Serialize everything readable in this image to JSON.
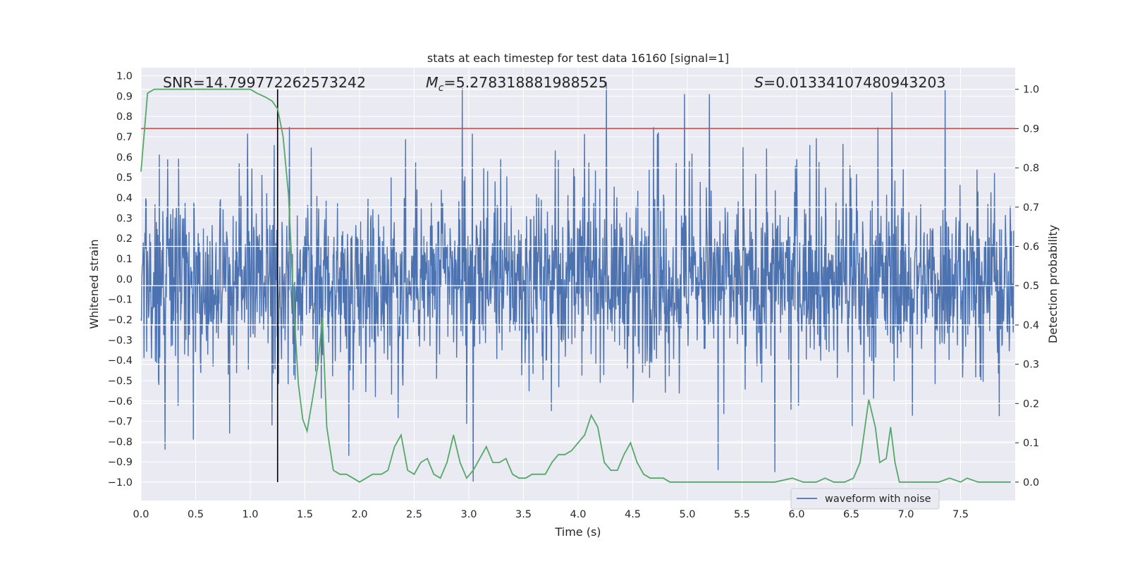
{
  "chart_data": {
    "type": "line",
    "title": "stats at each timestep for test data 16160 [signal=1]",
    "xlabel": "Time (s)",
    "ylabel_left": "Whitened strain",
    "ylabel_right": "Detection probability",
    "xlim": [
      0.0,
      8.0
    ],
    "ylim_left": [
      -1.09,
      1.04
    ],
    "ylim_right": [
      -0.047,
      1.055
    ],
    "x_ticks": [
      "0.0",
      "0.5",
      "1.0",
      "1.5",
      "2.0",
      "2.5",
      "3.0",
      "3.5",
      "4.0",
      "4.5",
      "5.0",
      "5.5",
      "6.0",
      "6.5",
      "7.0",
      "7.5"
    ],
    "y_ticks_left": [
      "1.0",
      "0.9",
      "0.8",
      "0.7",
      "0.6",
      "0.5",
      "0.4",
      "0.3",
      "0.2",
      "0.1",
      "0.0",
      "−0.1",
      "−0.2",
      "−0.3",
      "−0.4",
      "−0.5",
      "−0.6",
      "−0.7",
      "−0.8",
      "−0.9",
      "−1.0"
    ],
    "y_ticks_right": [
      "1.0",
      "0.9",
      "0.8",
      "0.7",
      "0.6",
      "0.5",
      "0.4",
      "0.3",
      "0.2",
      "0.1",
      "0.0"
    ],
    "grid": true,
    "legend_position": "lower-right",
    "annotations": {
      "snr": "SNR=14.799772262573242",
      "mc_symbol": "M",
      "mc_sub": "c",
      "mc_value": "=5.278318881988525",
      "s_symbol": "S",
      "s_value": "=0.01334107480943203"
    },
    "threshold": 0.9,
    "merger_time": 1.25,
    "colors": {
      "background": "#eaeaf2",
      "grid": "#ffffff",
      "waveform": "#4c72b0",
      "probability": "#55a868",
      "threshold": "#c44e52",
      "merger": "#000000"
    },
    "series": [
      {
        "name": "waveform with noise",
        "axis": "left",
        "envelope_peaks": [
          {
            "t": 0.22,
            "v": -0.84
          },
          {
            "t": 0.48,
            "v": -0.79
          },
          {
            "t": 0.81,
            "v": -0.76
          },
          {
            "t": 1.2,
            "v": -0.72
          },
          {
            "t": 1.9,
            "v": -0.87
          },
          {
            "t": 2.94,
            "v": 0.94
          },
          {
            "t": 3.04,
            "v": -1.0
          },
          {
            "t": 4.26,
            "v": 0.97
          },
          {
            "t": 4.97,
            "v": 0.91
          },
          {
            "t": 5.2,
            "v": 0.91
          },
          {
            "t": 5.28,
            "v": -0.94
          },
          {
            "t": 5.8,
            "v": -0.95
          },
          {
            "t": 7.36,
            "v": 0.93
          },
          {
            "t": 6.87,
            "v": 0.92
          }
        ]
      },
      {
        "name": "",
        "axis": "right",
        "x": [
          0.0,
          0.06,
          0.12,
          0.2,
          0.3,
          0.4,
          0.5,
          0.6,
          0.7,
          0.8,
          0.9,
          1.0,
          1.06,
          1.14,
          1.2,
          1.25,
          1.3,
          1.35,
          1.4,
          1.44,
          1.48,
          1.52,
          1.55,
          1.58,
          1.62,
          1.66,
          1.7,
          1.76,
          1.82,
          1.88,
          1.94,
          2.0,
          2.06,
          2.12,
          2.2,
          2.26,
          2.32,
          2.38,
          2.44,
          2.5,
          2.56,
          2.62,
          2.68,
          2.74,
          2.8,
          2.86,
          2.92,
          2.98,
          3.04,
          3.1,
          3.16,
          3.22,
          3.28,
          3.34,
          3.4,
          3.46,
          3.52,
          3.58,
          3.64,
          3.7,
          3.76,
          3.82,
          3.88,
          3.94,
          4.0,
          4.06,
          4.12,
          4.18,
          4.24,
          4.3,
          4.36,
          4.42,
          4.48,
          4.54,
          4.6,
          4.66,
          4.72,
          4.78,
          4.84,
          4.9,
          4.98,
          5.1,
          5.2,
          5.4,
          5.6,
          5.8,
          5.96,
          6.06,
          6.18,
          6.26,
          6.34,
          6.44,
          6.52,
          6.58,
          6.62,
          6.66,
          6.72,
          6.76,
          6.82,
          6.86,
          6.9,
          6.94,
          7.0,
          7.1,
          7.2,
          7.3,
          7.4,
          7.5,
          7.56,
          7.66,
          7.76,
          7.86,
          7.96
        ],
        "y": [
          0.79,
          0.99,
          1.0,
          1.0,
          1.0,
          1.0,
          1.0,
          1.0,
          1.0,
          1.0,
          1.0,
          1.0,
          0.99,
          0.98,
          0.97,
          0.95,
          0.88,
          0.73,
          0.44,
          0.25,
          0.16,
          0.13,
          0.18,
          0.23,
          0.3,
          0.42,
          0.14,
          0.03,
          0.02,
          0.02,
          0.01,
          0.0,
          0.01,
          0.02,
          0.02,
          0.03,
          0.09,
          0.12,
          0.03,
          0.02,
          0.05,
          0.06,
          0.02,
          0.01,
          0.05,
          0.12,
          0.05,
          0.01,
          0.03,
          0.06,
          0.09,
          0.05,
          0.05,
          0.06,
          0.02,
          0.01,
          0.01,
          0.02,
          0.02,
          0.02,
          0.05,
          0.07,
          0.07,
          0.08,
          0.1,
          0.12,
          0.17,
          0.14,
          0.05,
          0.03,
          0.03,
          0.07,
          0.1,
          0.05,
          0.02,
          0.01,
          0.01,
          0.01,
          0.0,
          0.0,
          0.0,
          0.0,
          0.0,
          0.0,
          0.0,
          0.0,
          0.01,
          0.0,
          0.0,
          0.01,
          0.0,
          0.0,
          0.01,
          0.05,
          0.13,
          0.21,
          0.14,
          0.05,
          0.06,
          0.14,
          0.05,
          0.0,
          0.0,
          0.0,
          0.0,
          0.0,
          0.01,
          0.0,
          0.01,
          0.0,
          0.0,
          0.0,
          0.0
        ]
      }
    ]
  }
}
